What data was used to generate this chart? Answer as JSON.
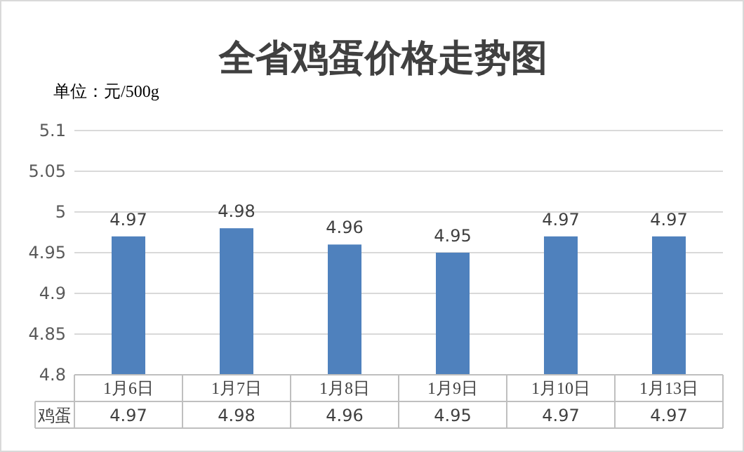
{
  "chart_data": {
    "type": "bar",
    "title": "全省鸡蛋价格走势图",
    "subtitle": "单位：元/500g",
    "categories": [
      "1月6日",
      "1月7日",
      "1月8日",
      "1月9日",
      "1月10日",
      "1月13日"
    ],
    "series": [
      {
        "name": "鸡蛋",
        "color": "#4f81bd",
        "values": [
          4.97,
          4.98,
          4.96,
          4.95,
          4.97,
          4.97
        ],
        "value_labels": [
          "4.97",
          "4.98",
          "4.96",
          "4.95",
          "4.97",
          "4.97"
        ]
      }
    ],
    "ylim": [
      4.8,
      5.1
    ],
    "yticks": [
      4.8,
      4.85,
      4.9,
      4.95,
      5,
      5.05,
      5.1
    ],
    "grid": "y",
    "data_labels": true,
    "annotations": [
      "4.97",
      "4.98",
      "4.96",
      "4.95",
      "4.97",
      "4.97"
    ]
  }
}
